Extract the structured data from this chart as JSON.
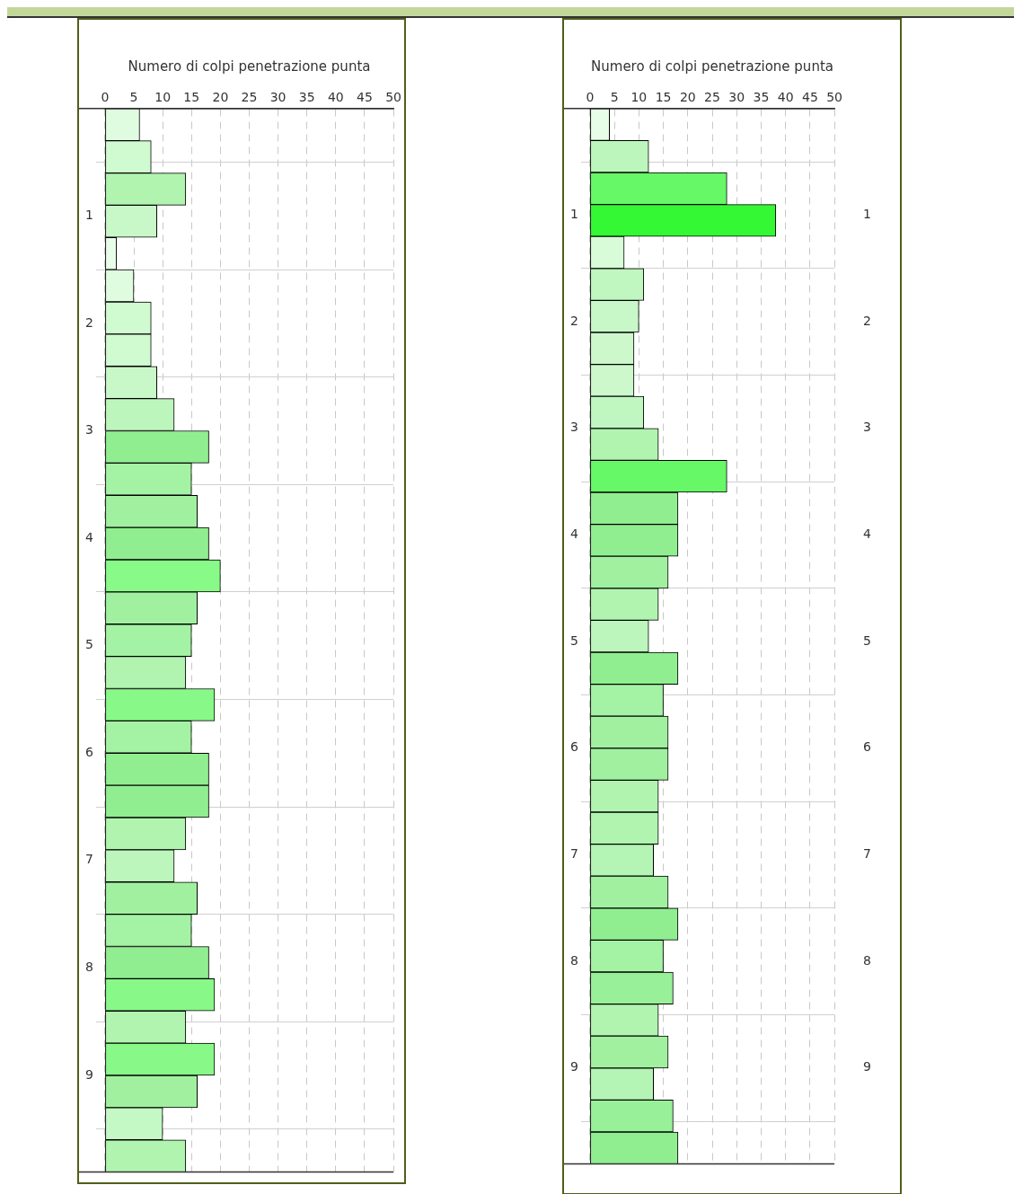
{
  "chart_data": [
    {
      "type": "histogram",
      "orientation": "horizontal",
      "xlabel": "Numero di colpi penetrazione punta",
      "xlim": [
        0,
        50
      ],
      "xticks": [
        0,
        5,
        10,
        15,
        20,
        25,
        30,
        35,
        40,
        45,
        50
      ],
      "ylim": [
        9.9,
        0
      ],
      "yticks": [
        1,
        2,
        3,
        4,
        5,
        6,
        7,
        8,
        9
      ],
      "grid": true,
      "legend": false,
      "bins": [
        0,
        0.3,
        0.6,
        0.9,
        1.2,
        1.5,
        1.8,
        2.1,
        2.4,
        2.7,
        3,
        3.3,
        3.6,
        3.9,
        4.2,
        4.5,
        4.8,
        5.1,
        5.4,
        5.7,
        6,
        6.3,
        6.6,
        6.9,
        7.2,
        7.5,
        7.8,
        8.1,
        8.4,
        8.7,
        9,
        9.3,
        9.6,
        9.9
      ],
      "values": [
        6,
        8,
        14,
        9,
        2,
        5,
        8,
        8,
        9,
        12,
        18,
        15,
        16,
        18,
        20,
        16,
        15,
        14,
        19,
        15,
        18,
        18,
        14,
        12,
        16,
        15,
        18,
        19,
        14,
        19,
        16,
        10,
        14
      ],
      "colors": [
        "#e0fce0",
        "#d0fad0",
        "#b0f4b0",
        "#c8f8c8",
        "#e8fde8",
        "#e0fce0",
        "#d0fad0",
        "#d0fad0",
        "#c8f8c8",
        "#bcf6bc",
        "#90ee90",
        "#a4f2a4",
        "#a0f0a0",
        "#90ee90",
        "#88fa88",
        "#a0f0a0",
        "#a4f2a4",
        "#b0f4b0",
        "#88f888",
        "#a4f2a4",
        "#90ee90",
        "#90ee90",
        "#b0f4b0",
        "#bcf6bc",
        "#a0f0a0",
        "#a4f2a4",
        "#90ee90",
        "#88f888",
        "#b0f4b0",
        "#88f888",
        "#a0f0a0",
        "#c4f8c4",
        "#b0f4b0"
      ]
    },
    {
      "type": "histogram",
      "orientation": "horizontal",
      "xlabel": "Numero di colpi penetrazione punta",
      "xlim": [
        0,
        50
      ],
      "xticks": [
        0,
        5,
        10,
        15,
        20,
        25,
        30,
        35,
        40,
        45,
        50
      ],
      "ylim": [
        9.9,
        0
      ],
      "yticks": [
        1,
        2,
        3,
        4,
        5,
        6,
        7,
        8,
        9
      ],
      "y2lim": [
        9.9,
        0
      ],
      "y2ticks": [
        1,
        2,
        3,
        4,
        5,
        6,
        7,
        8,
        9
      ],
      "grid": true,
      "legend": false,
      "bins": [
        0,
        0.3,
        0.6,
        0.9,
        1.2,
        1.5,
        1.8,
        2.1,
        2.4,
        2.7,
        3,
        3.3,
        3.6,
        3.9,
        4.2,
        4.5,
        4.8,
        5.1,
        5.4,
        5.7,
        6,
        6.3,
        6.6,
        6.9,
        7.2,
        7.5,
        7.8,
        8.1,
        8.4,
        8.7,
        9,
        9.3,
        9.6,
        9.9
      ],
      "values": [
        4,
        12,
        28,
        38,
        7,
        11,
        10,
        9,
        9,
        11,
        14,
        28,
        18,
        18,
        16,
        14,
        12,
        18,
        15,
        16,
        16,
        14,
        14,
        13,
        16,
        18,
        15,
        17,
        14,
        16,
        13,
        17,
        18
      ],
      "colors": [
        "#e8fde8",
        "#bcf6bc",
        "#66f866",
        "#33f833",
        "#d8fbd8",
        "#c0f6c0",
        "#c8f8c8",
        "#ccf8cc",
        "#ccf8cc",
        "#c0f6c0",
        "#b0f4b0",
        "#66f866",
        "#90ee90",
        "#90ee90",
        "#a0f0a0",
        "#b0f4b0",
        "#bcf6bc",
        "#90ee90",
        "#a4f2a4",
        "#a0f0a0",
        "#a0f0a0",
        "#b0f4b0",
        "#b0f4b0",
        "#b4f4b4",
        "#a0f0a0",
        "#90ee90",
        "#a4f2a4",
        "#98f098",
        "#b0f4b0",
        "#a0f0a0",
        "#b4f4b4",
        "#98f098",
        "#90ee90"
      ]
    }
  ]
}
